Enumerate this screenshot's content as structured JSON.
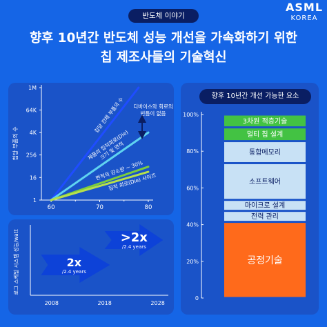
{
  "header": {
    "tag": "반도체 이야기",
    "logo": {
      "main": "ASML",
      "sub": "KOREA"
    },
    "title_lines": [
      "향후 10년간 반도체 성능 개선을 가속화하기 위한",
      "칩 제조사들의 기술혁신"
    ]
  },
  "colors": {
    "background": "#1565e6",
    "panel": "#1a53c8",
    "navy": "#0a1e63",
    "line_blue": "#1f4dff",
    "line_cyan": "#5fd3f0",
    "line_green": "#7ccd3d",
    "line_yellow_green": "#b7e04c",
    "arrow": "#0d42d8",
    "block_green": "#43c243",
    "block_light": "#c8e1f5",
    "block_orange": "#ff6a1b"
  },
  "chart_data": [
    {
      "type": "line",
      "scale": "log",
      "y_tick_labels": [
        "1M",
        "64K",
        "4K",
        "256",
        "16",
        "1"
      ],
      "y_tick_values": [
        1000000,
        64000,
        4000,
        256,
        16,
        1
      ],
      "ylim": [
        1,
        1000000
      ],
      "x_ticks": [
        60,
        70,
        80
      ],
      "x_minor_ticks": [
        65,
        75
      ],
      "xlim": [
        58,
        81
      ],
      "ylabel": "칩당 부품의 수",
      "series": [
        {
          "name": "칩당 전체 부품의 수",
          "x": [
            60,
            78
          ],
          "y": [
            1,
            1000000
          ]
        },
        {
          "name": "제품의 집적회로(Die) 크기 및 면적",
          "x": [
            60,
            80
          ],
          "y": [
            1,
            4000
          ]
        },
        {
          "name": "면적의 감소량 ~ 30%",
          "x": [
            60,
            80
          ],
          "y": [
            1,
            60
          ]
        },
        {
          "name": "집적 회로(Die) 사이즈",
          "x": [
            60,
            80
          ],
          "y": [
            1,
            32
          ]
        }
      ],
      "annotations": [
        {
          "text": "디바이스와 회로의",
          "text2": "빈틈이 없음"
        }
      ]
    },
    {
      "type": "bar",
      "ylabel": "로그 스케일 시스템 성능/watt",
      "x_ticks": [
        2008,
        2018,
        2028
      ],
      "xlim": [
        2004,
        2030
      ],
      "arrows": [
        {
          "label": "2x",
          "sublabel": "/2.4 years",
          "x_start": 2006,
          "x_end": 2019
        },
        {
          "label": ">2x",
          "sublabel": "/2.4 years",
          "x_start": 2018,
          "x_end": 2029
        }
      ]
    },
    {
      "type": "bar",
      "stacked": true,
      "title": "향후 10년간 개선 가능한 요소",
      "y_tick_labels": [
        "100%",
        "80%",
        "60%",
        "40%",
        "20%",
        "0"
      ],
      "ylim": [
        0,
        100
      ],
      "segments": [
        {
          "label": "3차원 적층기술",
          "from": 93.0,
          "to": 100.0
        },
        {
          "label": "멀티 칩 설계",
          "from": 85.5,
          "to": 93.0
        },
        {
          "label": "통합메모리",
          "from": 73.5,
          "to": 85.5
        },
        {
          "label": "소프트웨어",
          "from": 53.5,
          "to": 73.5
        },
        {
          "label": "마이크로 설계",
          "from": 47.5,
          "to": 53.5
        },
        {
          "label": "전력 관리",
          "from": 41.5,
          "to": 47.5
        },
        {
          "label": "공정기술",
          "from": 0.0,
          "to": 41.5
        }
      ]
    }
  ]
}
